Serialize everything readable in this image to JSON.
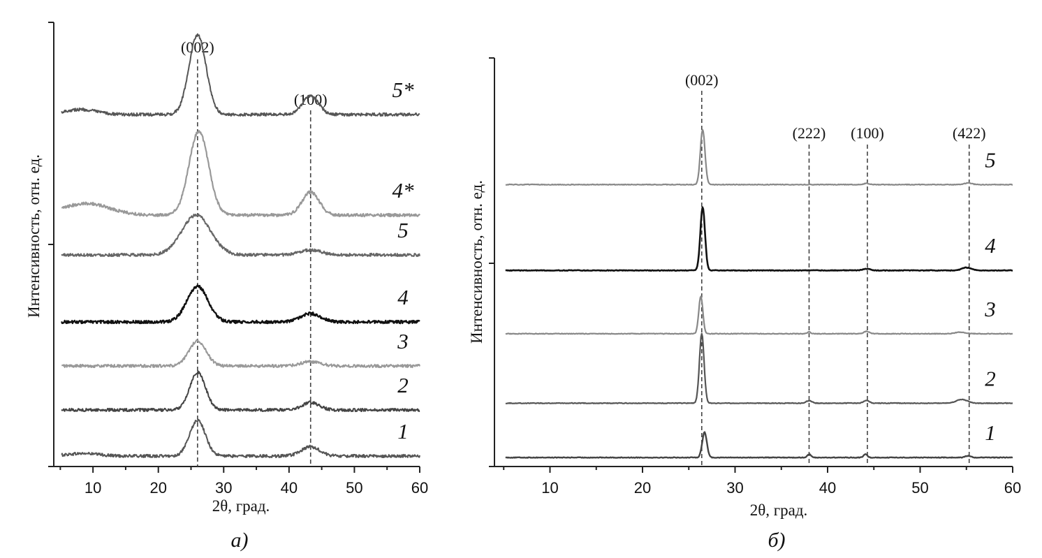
{
  "colors": {
    "axis": "#222222",
    "dashed": "#444444",
    "background": "#ffffff"
  },
  "chart_data": [
    {
      "type": "line",
      "panel_label": "а)",
      "xlabel": "2θ, град.",
      "ylabel": "Интенсивность, отн. ед.",
      "xlim": [
        4,
        60
      ],
      "ylim": [
        0,
        10.6
      ],
      "xticks": [
        10,
        20,
        30,
        40,
        50,
        60
      ],
      "grid": false,
      "noise": 0.035,
      "reference_lines": [
        {
          "label": "(002)",
          "x": 26
        },
        {
          "label": "(100)",
          "x": 43.3
        }
      ],
      "series": [
        {
          "name": "1",
          "baseline": 0.25,
          "color": "#555555",
          "width": 2,
          "peaks": [
            {
              "x": 26,
              "h": 0.85,
              "w": 1.2
            },
            {
              "x": 43.3,
              "h": 0.22,
              "w": 1.4
            },
            {
              "x": 8.5,
              "h": 0.06,
              "w": 2.5
            }
          ]
        },
        {
          "name": "2",
          "baseline": 1.35,
          "color": "#444444",
          "width": 2,
          "peaks": [
            {
              "x": 26,
              "h": 0.9,
              "w": 1.2
            },
            {
              "x": 43.3,
              "h": 0.18,
              "w": 1.3
            }
          ]
        },
        {
          "name": "3",
          "baseline": 2.4,
          "color": "#999999",
          "width": 2,
          "peaks": [
            {
              "x": 26,
              "h": 0.6,
              "w": 1.3
            },
            {
              "x": 43.3,
              "h": 0.1,
              "w": 1.5
            }
          ]
        },
        {
          "name": "4",
          "baseline": 3.45,
          "color": "#111111",
          "width": 2.3,
          "peaks": [
            {
              "x": 26,
              "h": 0.85,
              "w": 1.6
            },
            {
              "x": 43.3,
              "h": 0.2,
              "w": 1.5
            }
          ]
        },
        {
          "name": "5",
          "baseline": 5.05,
          "color": "#666666",
          "width": 2,
          "peaks": [
            {
              "x": 25.8,
              "h": 0.95,
              "w": 2.2
            },
            {
              "x": 43.3,
              "h": 0.12,
              "w": 1.6
            }
          ]
        },
        {
          "name": "4*",
          "baseline": 6.0,
          "color": "#999999",
          "width": 2.2,
          "peaks": [
            {
              "x": 26.2,
              "h": 2.0,
              "w": 1.5
            },
            {
              "x": 43.3,
              "h": 0.55,
              "w": 1.3
            },
            {
              "x": 9,
              "h": 0.28,
              "w": 3.5
            }
          ]
        },
        {
          "name": "5*",
          "baseline": 8.4,
          "color": "#555555",
          "width": 2,
          "peaks": [
            {
              "x": 26,
              "h": 1.9,
              "w": 1.3
            },
            {
              "x": 43.3,
              "h": 0.45,
              "w": 1.2
            },
            {
              "x": 8,
              "h": 0.12,
              "w": 2.5
            }
          ]
        }
      ]
    },
    {
      "type": "line",
      "panel_label": "б)",
      "xlabel": "2θ, град.",
      "ylabel": "Интенсивность, отн. ед.",
      "xlim": [
        4,
        60
      ],
      "ylim": [
        0,
        10
      ],
      "xticks": [
        10,
        20,
        30,
        40,
        50,
        60
      ],
      "grid": false,
      "noise": 0.008,
      "reference_lines": [
        {
          "label": "(002)",
          "x": 26.4
        },
        {
          "label": "(222)",
          "x": 38
        },
        {
          "label": "(100)",
          "x": 44.3
        },
        {
          "label": "(422)",
          "x": 55.3
        }
      ],
      "series": [
        {
          "name": "1",
          "baseline": 0.22,
          "color": "#444444",
          "width": 2.4,
          "peaks": [
            {
              "x": 26.7,
              "h": 0.62,
              "w": 0.25
            },
            {
              "x": 38,
              "h": 0.08,
              "w": 0.2
            },
            {
              "x": 44.1,
              "h": 0.08,
              "w": 0.2
            },
            {
              "x": 55.2,
              "h": 0.04,
              "w": 0.3
            }
          ]
        },
        {
          "name": "2",
          "baseline": 1.55,
          "color": "#555555",
          "width": 2.2,
          "peaks": [
            {
              "x": 26.4,
              "h": 1.7,
              "w": 0.25
            },
            {
              "x": 38,
              "h": 0.06,
              "w": 0.3
            },
            {
              "x": 44.2,
              "h": 0.07,
              "w": 0.3
            },
            {
              "x": 54.5,
              "h": 0.09,
              "w": 0.6
            }
          ]
        },
        {
          "name": "3",
          "baseline": 3.25,
          "color": "#888888",
          "width": 2.2,
          "peaks": [
            {
              "x": 26.3,
              "h": 0.92,
              "w": 0.22
            },
            {
              "x": 38,
              "h": 0.04,
              "w": 0.2
            },
            {
              "x": 44.2,
              "h": 0.06,
              "w": 0.3
            },
            {
              "x": 54.3,
              "h": 0.04,
              "w": 0.5
            }
          ]
        },
        {
          "name": "4",
          "baseline": 4.8,
          "color": "#111111",
          "width": 2.6,
          "peaks": [
            {
              "x": 26.5,
              "h": 1.55,
              "w": 0.25
            },
            {
              "x": 44.2,
              "h": 0.04,
              "w": 0.4
            },
            {
              "x": 55.0,
              "h": 0.07,
              "w": 0.5
            }
          ]
        },
        {
          "name": "5",
          "baseline": 6.9,
          "color": "#888888",
          "width": 2.2,
          "peaks": [
            {
              "x": 26.5,
              "h": 1.35,
              "w": 0.25
            },
            {
              "x": 44.2,
              "h": 0.03,
              "w": 0.3
            },
            {
              "x": 55.2,
              "h": 0.04,
              "w": 0.4
            }
          ]
        }
      ]
    }
  ]
}
